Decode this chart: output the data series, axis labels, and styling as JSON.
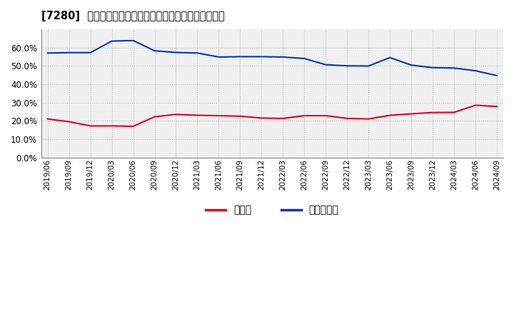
{
  "title": "[7280]  現須金、有利子負債の総資産に対する比率の推移",
  "x_labels": [
    "2019/06",
    "2019/09",
    "2019/12",
    "2020/03",
    "2020/06",
    "2020/09",
    "2020/12",
    "2021/03",
    "2021/06",
    "2021/09",
    "2021/12",
    "2022/03",
    "2022/06",
    "2022/09",
    "2022/12",
    "2023/03",
    "2023/06",
    "2023/09",
    "2023/12",
    "2024/03",
    "2024/06",
    "2024/09"
  ],
  "cash": [
    0.21,
    0.195,
    0.172,
    0.172,
    0.17,
    0.222,
    0.235,
    0.23,
    0.228,
    0.225,
    0.215,
    0.213,
    0.228,
    0.228,
    0.213,
    0.21,
    0.23,
    0.238,
    0.245,
    0.246,
    0.285,
    0.278
  ],
  "debt": [
    0.57,
    0.572,
    0.572,
    0.635,
    0.638,
    0.582,
    0.573,
    0.57,
    0.548,
    0.55,
    0.55,
    0.548,
    0.54,
    0.506,
    0.5,
    0.499,
    0.545,
    0.504,
    0.49,
    0.488,
    0.473,
    0.447
  ],
  "cash_color": "#e8001c",
  "debt_color": "#0033cc",
  "bg_color": "#ffffff",
  "plot_bg_color": "#f0f0f0",
  "grid_color": "#bbbbbb",
  "legend_cash": "現須金",
  "legend_debt": "有利子負債",
  "ylim": [
    0.0,
    0.7
  ],
  "yticks": [
    0.0,
    0.1,
    0.2,
    0.3,
    0.4,
    0.5,
    0.6
  ]
}
